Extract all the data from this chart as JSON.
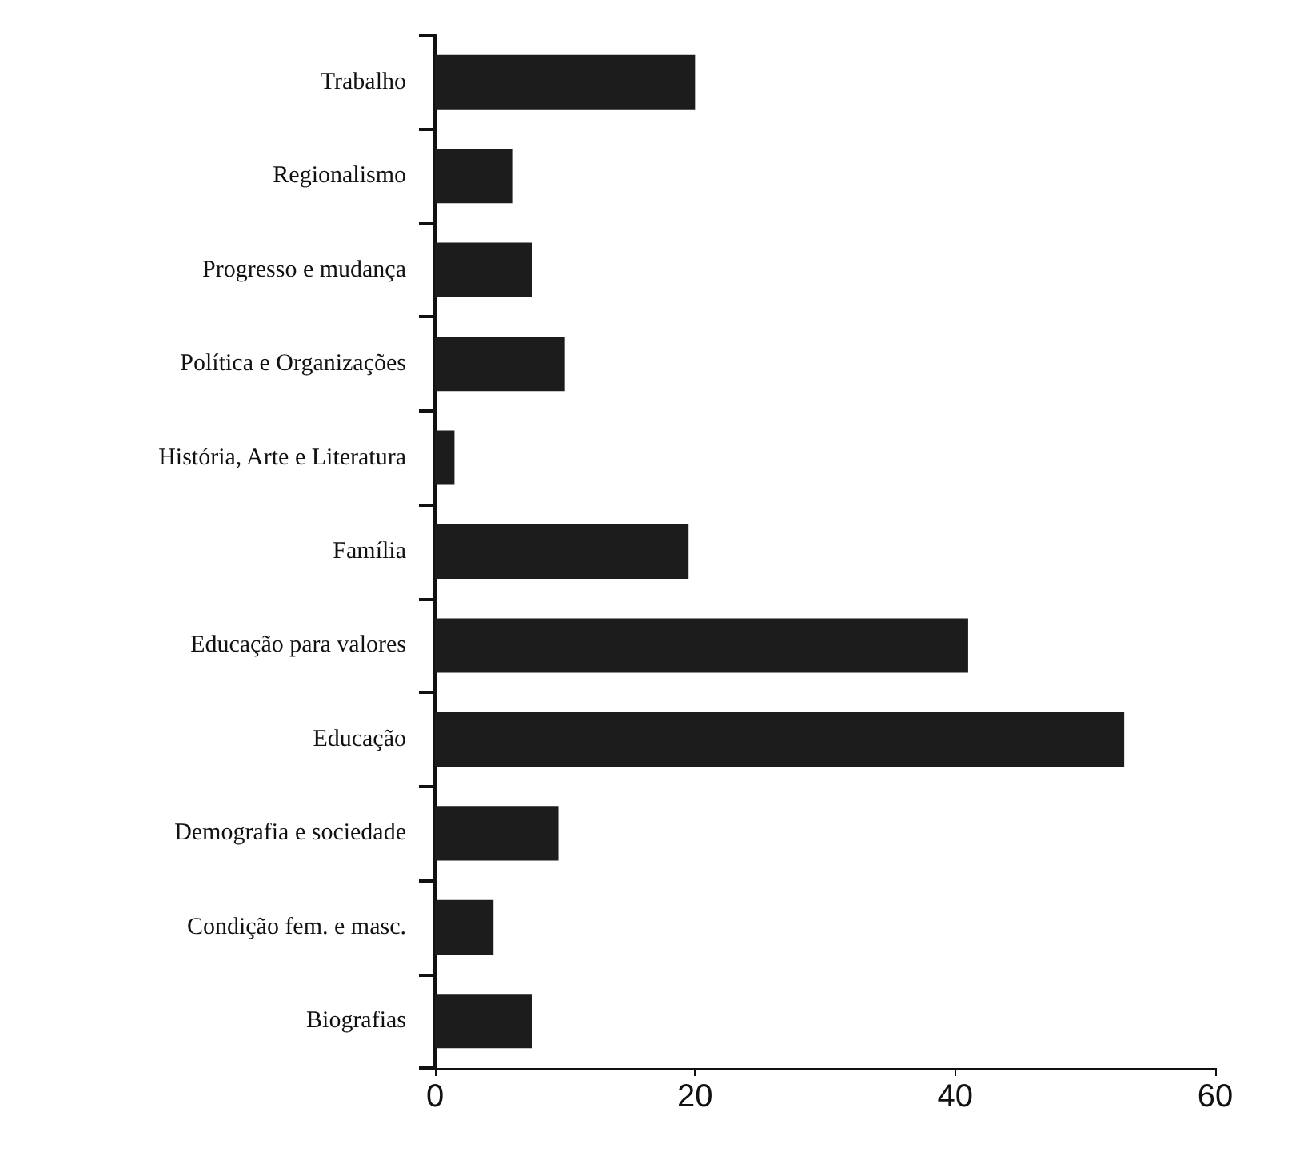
{
  "chart_data": {
    "type": "bar",
    "orientation": "horizontal",
    "categories": [
      "Trabalho",
      "Regionalismo",
      "Progresso e mudança",
      "Política e Organizações",
      "História, Arte e Literatura",
      "Família",
      "Educação para valores",
      "Educação",
      "Demografia e sociedade",
      "Condição fem. e masc.",
      "Biografias"
    ],
    "values": [
      20,
      6,
      7.5,
      10,
      1.5,
      19.5,
      41,
      53,
      9.5,
      4.5,
      7.5
    ],
    "color": "#1c1c1c",
    "xlim": [
      0,
      60
    ],
    "xticks": [
      0,
      20,
      40,
      60
    ],
    "grid": false
  }
}
